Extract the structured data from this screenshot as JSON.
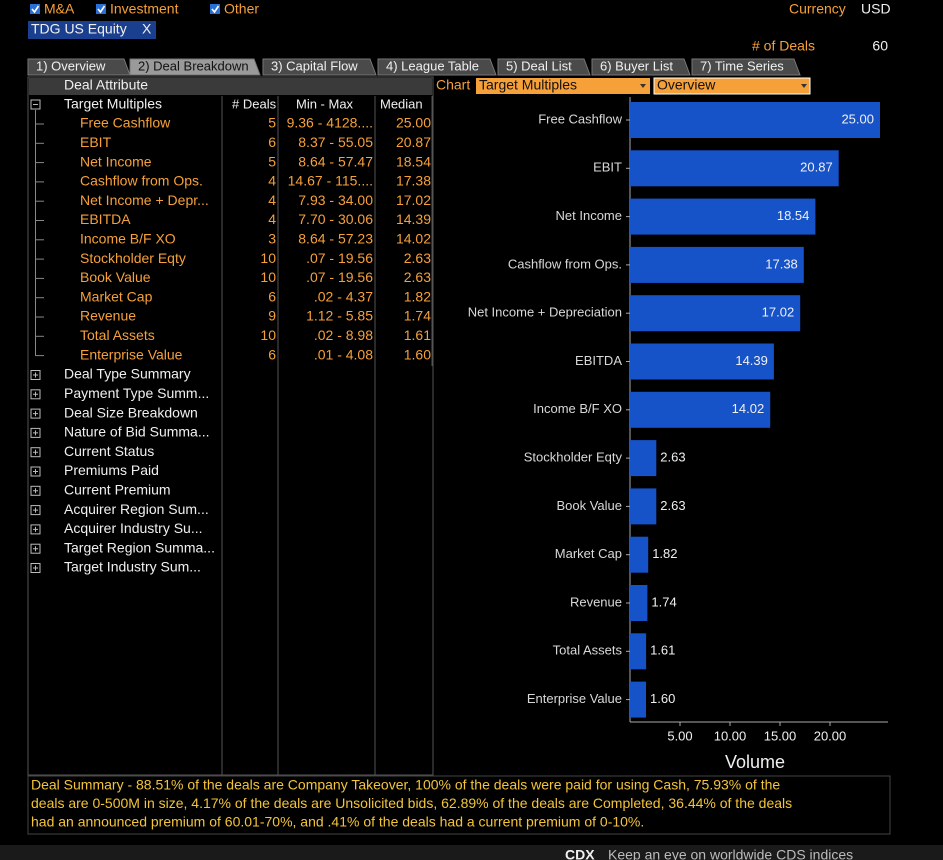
{
  "filters": {
    "items": [
      "M&A",
      "Investment",
      "Other"
    ],
    "currency_label": "Currency",
    "currency": "USD",
    "security": "TDG US Equity",
    "close": "X",
    "deals_label": "# of Deals",
    "deals": 60
  },
  "tabs": [
    "1) Overview",
    "2) Deal Breakdown",
    "3) Capital Flow",
    "4) League Table",
    "5) Deal List",
    "6) Buyer List",
    "7) Time Series"
  ],
  "table": {
    "columns": [
      "Deal Attribute",
      "# Deals",
      "Min - Max",
      "Median"
    ],
    "group": "Target Multiples",
    "rows": [
      [
        "Free Cashflow",
        5,
        "9.36 - 4128....",
        "25.00"
      ],
      [
        "EBIT",
        6,
        "8.37 - 55.05",
        "20.87"
      ],
      [
        "Net Income",
        5,
        "8.64 - 57.47",
        "18.54"
      ],
      [
        "Cashflow from Ops.",
        4,
        "14.67 - 115....",
        "17.38"
      ],
      [
        "Net Income + Depr...",
        4,
        "7.93 - 34.00",
        "17.02"
      ],
      [
        "EBITDA",
        4,
        "7.70 - 30.06",
        "14.39"
      ],
      [
        "Income B/F XO",
        3,
        "8.64 - 57.23",
        "14.02"
      ],
      [
        "Stockholder Eqty",
        10,
        ".07 - 19.56",
        "2.63"
      ],
      [
        "Book Value",
        10,
        ".07 - 19.56",
        "2.63"
      ],
      [
        "Market Cap",
        6,
        ".02 - 4.37",
        "1.82"
      ],
      [
        "Revenue",
        9,
        "1.12 - 5.85",
        "1.74"
      ],
      [
        "Total Assets",
        10,
        ".02 - 8.98",
        "1.61"
      ],
      [
        "Enterprise Value",
        6,
        ".01 - 4.08",
        "1.60"
      ]
    ],
    "collapsed": [
      "Deal Type Summary",
      "Payment Type Summ...",
      "Deal Size  Breakdown",
      "Nature of Bid Summa...",
      "Current Status",
      "Premiums Paid",
      "Current Premium",
      "Acquirer Region Sum...",
      "Acquirer Industry Su...",
      "Target Region Summa...",
      "Target Industry Sum..."
    ]
  },
  "chart_controls": {
    "label": "Chart",
    "source": "Target Multiples",
    "view": "Overview"
  },
  "chart_data": {
    "type": "bar",
    "orientation": "horizontal",
    "x_label": "Volume",
    "color": "#1652c8",
    "categories": [
      "Free Cashflow",
      "EBIT",
      "Net Income",
      "Cashflow from Ops.",
      "Net Income + Depreciation",
      "EBITDA",
      "Income B/F XO",
      "Stockholder Eqty",
      "Book Value",
      "Market Cap",
      "Revenue",
      "Total Assets",
      "Enterprise Value"
    ],
    "values": [
      25.0,
      20.87,
      18.54,
      17.38,
      17.02,
      14.39,
      14.02,
      2.63,
      2.63,
      1.82,
      1.74,
      1.61,
      1.6
    ],
    "value_labels": [
      "25.00",
      "20.87",
      "18.54",
      "17.38",
      "17.02",
      "14.39",
      "14.02",
      "2.63",
      "2.63",
      "1.82",
      "1.74",
      "1.61",
      "1.60"
    ],
    "xlim": [
      0,
      25.8
    ],
    "xticks": [
      {
        "value": 5,
        "label": "5.00"
      },
      {
        "value": 10,
        "label": "10.00"
      },
      {
        "value": 15,
        "label": "15.00"
      },
      {
        "value": 20,
        "label": "20.00"
      }
    ]
  },
  "summary": [
    "Deal Summary - 88.51% of the deals are Company Takeover, 100% of the deals were paid for using Cash, 75.93% of the",
    "deals are 0-500M in size, 4.17% of the deals are Unsolicited bids, 62.89% of the deals are Completed, 36.44% of the deals",
    "had an announced premium of 60.01-70%, and .41% of the deals  had a current premium of 0-10%."
  ],
  "news": {
    "ticker": "CDX",
    "text": "Keep an eye on worldwide CDS indices"
  }
}
